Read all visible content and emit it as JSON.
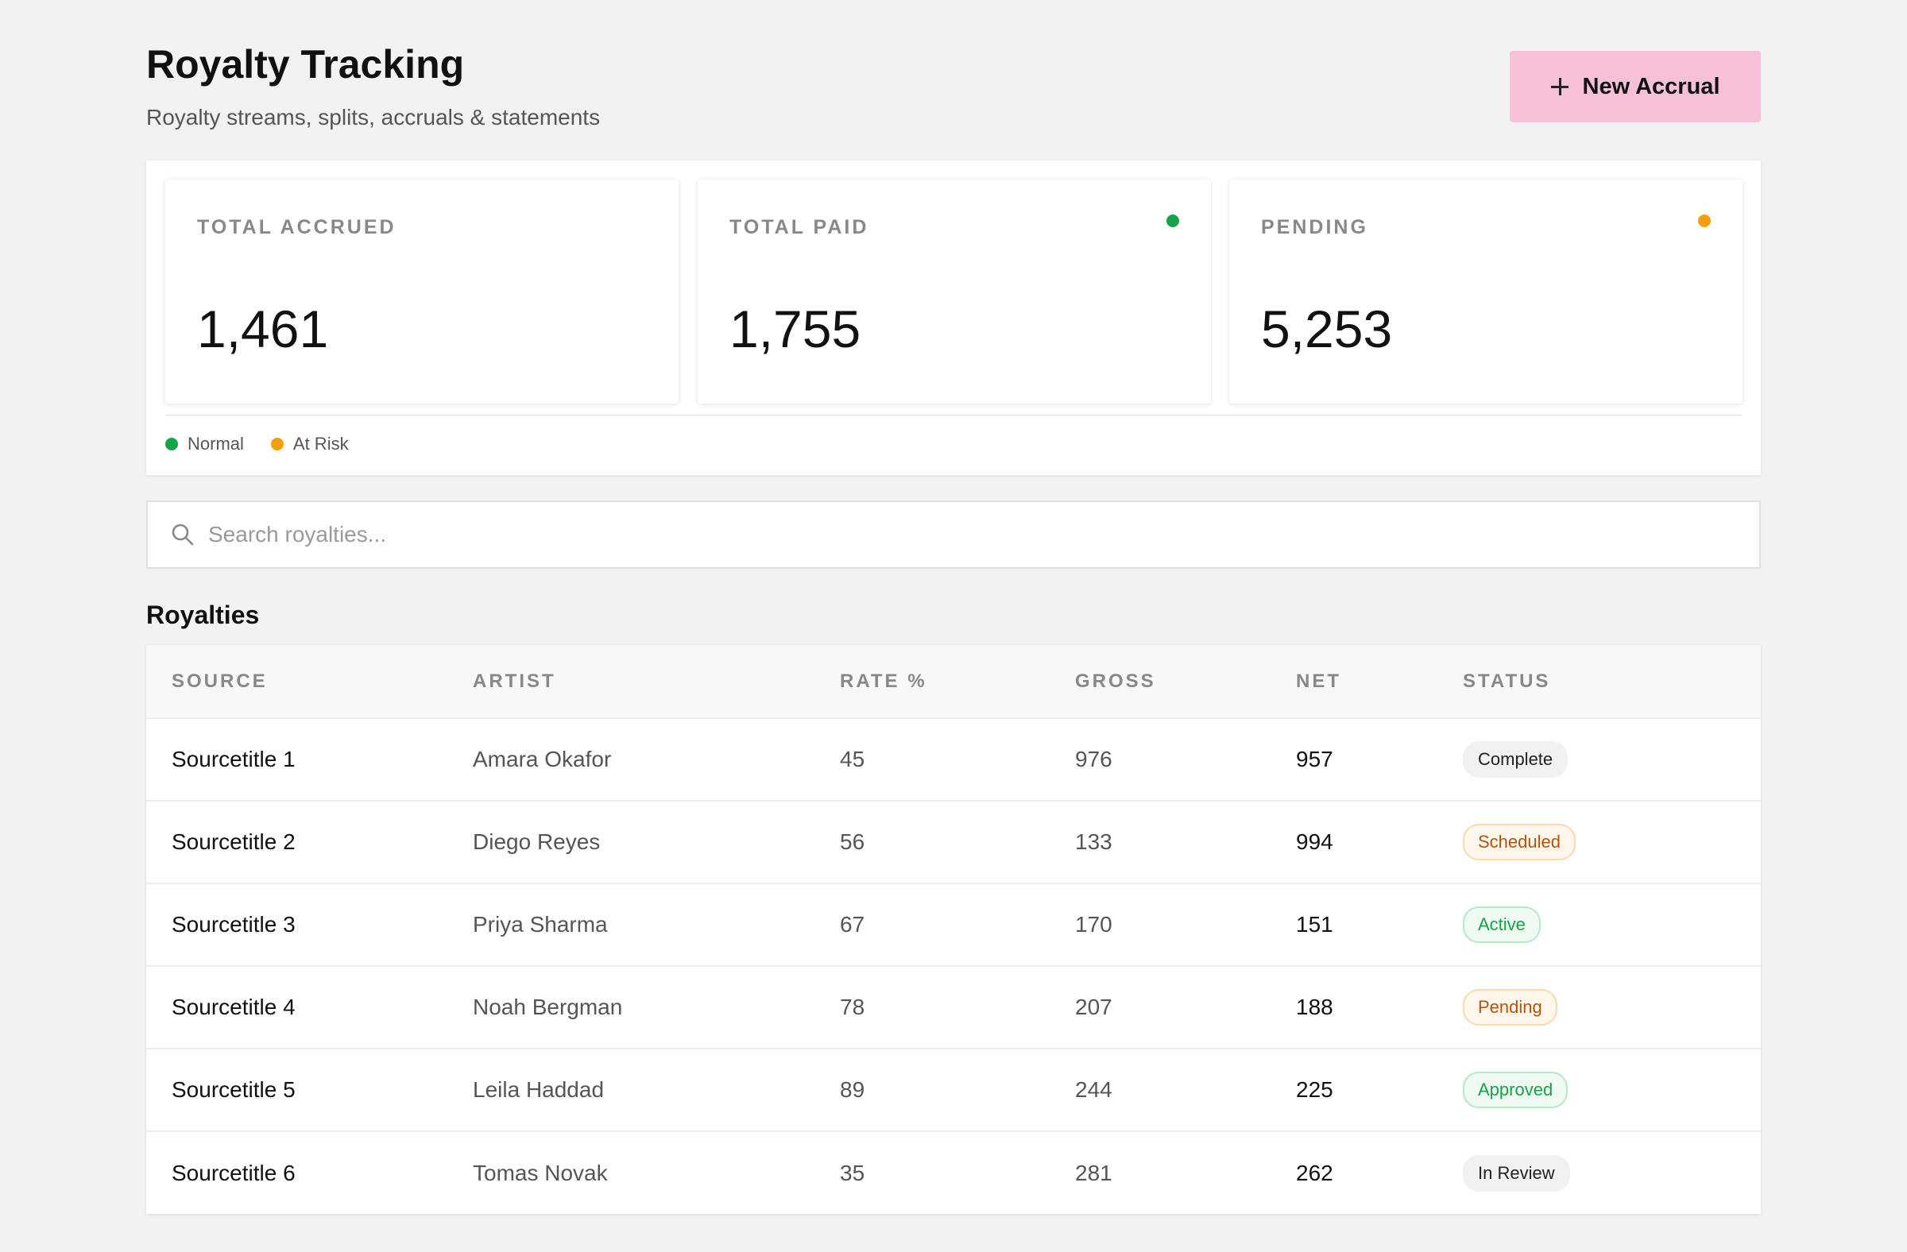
{
  "header": {
    "title": "Royalty Tracking",
    "subtitle": "Royalty streams, splits, accruals & statements",
    "new_button_label": "New Accrual",
    "new_button_icon": "plus-icon",
    "new_button_color": "#f6c1d8"
  },
  "stats": [
    {
      "label": "TOTAL ACCRUED",
      "value": "1,461",
      "dot": null
    },
    {
      "label": "TOTAL PAID",
      "value": "1,755",
      "dot": "#16a34a"
    },
    {
      "label": "PENDING",
      "value": "5,253",
      "dot": "#f59e0b"
    }
  ],
  "legend": [
    {
      "label": "Normal",
      "color": "#16a34a"
    },
    {
      "label": "At Risk",
      "color": "#f59e0b"
    }
  ],
  "search": {
    "placeholder": "Search royalties...",
    "value": "",
    "icon": "search-icon"
  },
  "section_title": "Royalties",
  "table": {
    "columns": [
      "SOURCE",
      "ARTIST",
      "RATE %",
      "GROSS",
      "NET",
      "STATUS"
    ],
    "rows": [
      {
        "source": "Sourcetitle 1",
        "artist": "Amara Okafor",
        "rate": "45",
        "gross": "976",
        "net": "957",
        "status": "Complete",
        "status_kind": "neutral"
      },
      {
        "source": "Sourcetitle 2",
        "artist": "Diego Reyes",
        "rate": "56",
        "gross": "133",
        "net": "994",
        "status": "Scheduled",
        "status_kind": "warn"
      },
      {
        "source": "Sourcetitle 3",
        "artist": "Priya Sharma",
        "rate": "67",
        "gross": "170",
        "net": "151",
        "status": "Active",
        "status_kind": "ok"
      },
      {
        "source": "Sourcetitle 4",
        "artist": "Noah Bergman",
        "rate": "78",
        "gross": "207",
        "net": "188",
        "status": "Pending",
        "status_kind": "warn"
      },
      {
        "source": "Sourcetitle 5",
        "artist": "Leila Haddad",
        "rate": "89",
        "gross": "244",
        "net": "225",
        "status": "Approved",
        "status_kind": "ok"
      },
      {
        "source": "Sourcetitle 6",
        "artist": "Tomas Novak",
        "rate": "35",
        "gross": "281",
        "net": "262",
        "status": "In Review",
        "status_kind": "neutral"
      }
    ]
  }
}
